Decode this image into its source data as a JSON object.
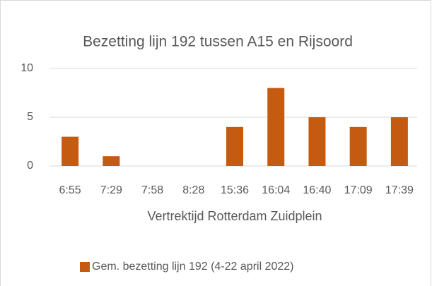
{
  "chart_data": {
    "type": "bar",
    "title": "Bezetting lijn 192 tussen A15 en Rijsoord",
    "x_label": "Vertrektijd Rotterdam Zuidplein",
    "categories": [
      "6:55",
      "7:29",
      "7:58",
      "8:28",
      "15:36",
      "16:04",
      "16:40",
      "17:09",
      "17:39"
    ],
    "series": [
      {
        "name": "Gem. bezetting lijn 192 (4-22 april 2022)",
        "color": "#c55a11",
        "values": [
          3,
          1,
          0,
          0,
          4,
          8,
          5,
          4,
          5
        ]
      }
    ],
    "ylim": [
      0,
      10
    ],
    "yticks": [
      0,
      5,
      10
    ],
    "grid": true,
    "legend": "bottom"
  }
}
